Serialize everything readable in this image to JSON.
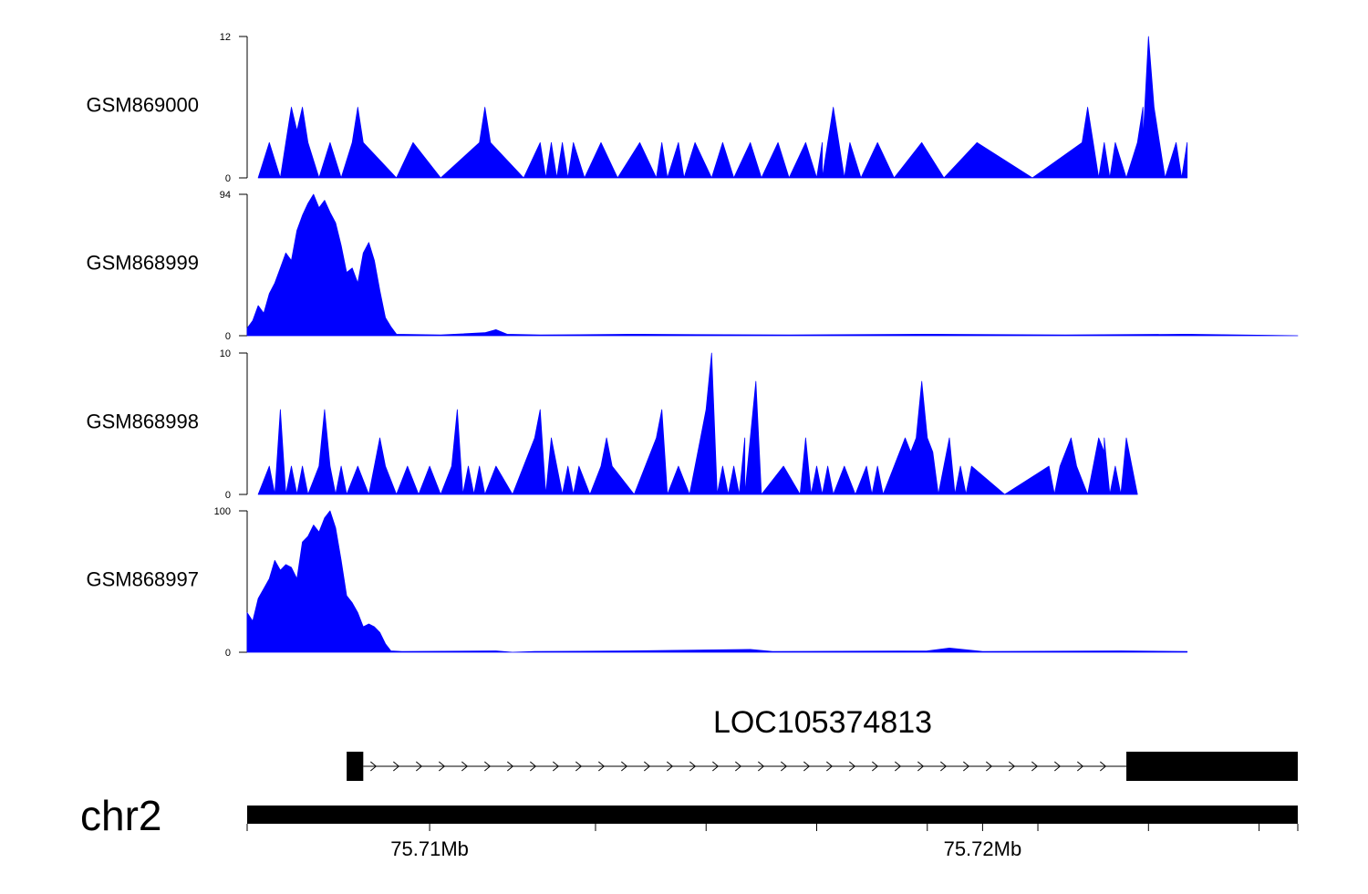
{
  "chart_data": {
    "type": "area",
    "x_range_mb": [
      75.7067,
      75.7257
    ],
    "tracks": [
      {
        "name": "GSM869000",
        "ylim": [
          0,
          12
        ],
        "y_tick_labels": [
          "0",
          "12"
        ],
        "color": "#0000ff",
        "points": [
          [
            75.7069,
            0
          ],
          [
            75.7071,
            3
          ],
          [
            75.7073,
            0
          ],
          [
            75.7074,
            3
          ],
          [
            75.7075,
            6
          ],
          [
            75.7076,
            4
          ],
          [
            75.7077,
            6
          ],
          [
            75.7078,
            3
          ],
          [
            75.708,
            0
          ],
          [
            75.7082,
            3
          ],
          [
            75.7084,
            0
          ],
          [
            75.7086,
            3
          ],
          [
            75.7087,
            6
          ],
          [
            75.7088,
            3
          ],
          [
            75.7094,
            0
          ],
          [
            75.7097,
            3
          ],
          [
            75.7102,
            0
          ],
          [
            75.7109,
            3
          ],
          [
            75.711,
            6
          ],
          [
            75.7111,
            3
          ],
          [
            75.7117,
            0
          ],
          [
            75.712,
            3
          ],
          [
            75.7121,
            0
          ],
          [
            75.7122,
            3
          ],
          [
            75.7123,
            0
          ],
          [
            75.7124,
            3
          ],
          [
            75.7125,
            0
          ],
          [
            75.7126,
            3
          ],
          [
            75.7128,
            0
          ],
          [
            75.7131,
            3
          ],
          [
            75.7134,
            0
          ],
          [
            75.7138,
            3
          ],
          [
            75.7141,
            0
          ],
          [
            75.7142,
            3
          ],
          [
            75.7143,
            0
          ],
          [
            75.7145,
            3
          ],
          [
            75.7146,
            0
          ],
          [
            75.7148,
            3
          ],
          [
            75.7151,
            0
          ],
          [
            75.7153,
            3
          ],
          [
            75.7155,
            0
          ],
          [
            75.7158,
            3
          ],
          [
            75.716,
            0
          ],
          [
            75.7163,
            3
          ],
          [
            75.7165,
            0
          ],
          [
            75.7168,
            3
          ],
          [
            75.717,
            0
          ],
          [
            75.7171,
            3
          ],
          [
            75.7171,
            0
          ],
          [
            75.7172,
            3
          ],
          [
            75.7173,
            6
          ],
          [
            75.7174,
            3
          ],
          [
            75.7175,
            0
          ],
          [
            75.7176,
            3
          ],
          [
            75.7178,
            0
          ],
          [
            75.7181,
            3
          ],
          [
            75.7184,
            0
          ],
          [
            75.7189,
            3
          ],
          [
            75.7193,
            0
          ],
          [
            75.7199,
            3
          ],
          [
            75.7209,
            0
          ],
          [
            75.7218,
            3
          ],
          [
            75.7219,
            6
          ],
          [
            75.722,
            3
          ],
          [
            75.7221,
            0
          ],
          [
            75.7222,
            3
          ],
          [
            75.7223,
            0
          ],
          [
            75.7224,
            3
          ],
          [
            75.7226,
            0
          ],
          [
            75.7228,
            3
          ],
          [
            75.7229,
            6
          ],
          [
            75.7229,
            3
          ],
          [
            75.723,
            12
          ],
          [
            75.7231,
            6
          ],
          [
            75.7232,
            3
          ],
          [
            75.7233,
            0
          ],
          [
            75.7235,
            3
          ],
          [
            75.7236,
            0
          ],
          [
            75.7237,
            3
          ],
          [
            75.7237,
            0
          ]
        ]
      },
      {
        "name": "GSM868999",
        "ylim": [
          0,
          94
        ],
        "y_tick_labels": [
          "0",
          "94"
        ],
        "color": "#0000ff",
        "points": [
          [
            75.7067,
            5
          ],
          [
            75.7068,
            10
          ],
          [
            75.7069,
            20
          ],
          [
            75.707,
            15
          ],
          [
            75.7071,
            28
          ],
          [
            75.7072,
            35
          ],
          [
            75.7073,
            45
          ],
          [
            75.7074,
            55
          ],
          [
            75.7075,
            50
          ],
          [
            75.7076,
            70
          ],
          [
            75.7077,
            80
          ],
          [
            75.7078,
            88
          ],
          [
            75.7079,
            94
          ],
          [
            75.708,
            85
          ],
          [
            75.7081,
            90
          ],
          [
            75.7082,
            82
          ],
          [
            75.7083,
            75
          ],
          [
            75.7084,
            60
          ],
          [
            75.7085,
            42
          ],
          [
            75.7086,
            45
          ],
          [
            75.7087,
            35
          ],
          [
            75.7088,
            55
          ],
          [
            75.7089,
            62
          ],
          [
            75.709,
            50
          ],
          [
            75.7091,
            30
          ],
          [
            75.7092,
            12
          ],
          [
            75.7093,
            6
          ],
          [
            75.7094,
            1
          ],
          [
            75.7102,
            0.5
          ],
          [
            75.711,
            2
          ],
          [
            75.7112,
            4
          ],
          [
            75.7114,
            1
          ],
          [
            75.712,
            0.5
          ],
          [
            75.7137,
            1
          ],
          [
            75.7165,
            0.5
          ],
          [
            75.719,
            1
          ],
          [
            75.7215,
            0.5
          ],
          [
            75.7237,
            1
          ],
          [
            75.7257,
            0
          ]
        ]
      },
      {
        "name": "GSM868998",
        "ylim": [
          0,
          10
        ],
        "y_tick_labels": [
          "0",
          "10"
        ],
        "color": "#0000ff",
        "points": [
          [
            75.7069,
            0
          ],
          [
            75.7071,
            2
          ],
          [
            75.7072,
            0
          ],
          [
            75.7073,
            6
          ],
          [
            75.7074,
            0
          ],
          [
            75.7075,
            2
          ],
          [
            75.7076,
            0
          ],
          [
            75.7077,
            2
          ],
          [
            75.7078,
            0
          ],
          [
            75.708,
            2
          ],
          [
            75.7081,
            6
          ],
          [
            75.7082,
            2
          ],
          [
            75.7083,
            0
          ],
          [
            75.7084,
            2
          ],
          [
            75.7085,
            0
          ],
          [
            75.7087,
            2
          ],
          [
            75.7089,
            0
          ],
          [
            75.709,
            2
          ],
          [
            75.7091,
            4
          ],
          [
            75.7092,
            2
          ],
          [
            75.7094,
            0
          ],
          [
            75.7096,
            2
          ],
          [
            75.7098,
            0
          ],
          [
            75.71,
            2
          ],
          [
            75.7102,
            0
          ],
          [
            75.7104,
            2
          ],
          [
            75.7105,
            6
          ],
          [
            75.7106,
            0
          ],
          [
            75.7107,
            2
          ],
          [
            75.7108,
            0
          ],
          [
            75.7109,
            2
          ],
          [
            75.711,
            0
          ],
          [
            75.7112,
            2
          ],
          [
            75.7115,
            0
          ],
          [
            75.7119,
            4
          ],
          [
            75.712,
            6
          ],
          [
            75.7121,
            0
          ],
          [
            75.7122,
            4
          ],
          [
            75.7124,
            0
          ],
          [
            75.7125,
            2
          ],
          [
            75.7126,
            0
          ],
          [
            75.7127,
            2
          ],
          [
            75.7129,
            0
          ],
          [
            75.7131,
            2
          ],
          [
            75.7132,
            4
          ],
          [
            75.7133,
            2
          ],
          [
            75.7137,
            0
          ],
          [
            75.7141,
            4
          ],
          [
            75.7142,
            6
          ],
          [
            75.7143,
            0
          ],
          [
            75.7145,
            2
          ],
          [
            75.7147,
            0
          ],
          [
            75.7149,
            4
          ],
          [
            75.715,
            6
          ],
          [
            75.7151,
            10
          ],
          [
            75.7152,
            0
          ],
          [
            75.7153,
            2
          ],
          [
            75.7154,
            0
          ],
          [
            75.7155,
            2
          ],
          [
            75.7156,
            0
          ],
          [
            75.7157,
            4
          ],
          [
            75.7157,
            0
          ],
          [
            75.7158,
            4
          ],
          [
            75.7159,
            8
          ],
          [
            75.716,
            0
          ],
          [
            75.7164,
            2
          ],
          [
            75.7167,
            0
          ],
          [
            75.7168,
            4
          ],
          [
            75.7169,
            0
          ],
          [
            75.717,
            2
          ],
          [
            75.7171,
            0
          ],
          [
            75.7172,
            2
          ],
          [
            75.7173,
            0
          ],
          [
            75.7175,
            2
          ],
          [
            75.7177,
            0
          ],
          [
            75.7179,
            2
          ],
          [
            75.718,
            0
          ],
          [
            75.7181,
            2
          ],
          [
            75.7182,
            0
          ],
          [
            75.7184,
            2
          ],
          [
            75.7186,
            4
          ],
          [
            75.7187,
            3
          ],
          [
            75.7188,
            4
          ],
          [
            75.7189,
            8
          ],
          [
            75.719,
            4
          ],
          [
            75.7191,
            3
          ],
          [
            75.7192,
            0
          ],
          [
            75.7194,
            4
          ],
          [
            75.7195,
            0
          ],
          [
            75.7196,
            2
          ],
          [
            75.7197,
            0
          ],
          [
            75.7198,
            2
          ],
          [
            75.7204,
            0
          ],
          [
            75.7212,
            2
          ],
          [
            75.7213,
            0
          ],
          [
            75.7214,
            2
          ],
          [
            75.7216,
            4
          ],
          [
            75.7217,
            2
          ],
          [
            75.7219,
            0
          ],
          [
            75.722,
            2
          ],
          [
            75.7221,
            4
          ],
          [
            75.7222,
            3
          ],
          [
            75.7222,
            4
          ],
          [
            75.7223,
            0
          ],
          [
            75.7224,
            2
          ],
          [
            75.7225,
            0
          ],
          [
            75.7226,
            4
          ],
          [
            75.7227,
            2
          ],
          [
            75.7228,
            0
          ]
        ]
      },
      {
        "name": "GSM868997",
        "ylim": [
          0,
          100
        ],
        "y_tick_labels": [
          "0",
          "100"
        ],
        "color": "#0000ff",
        "points": [
          [
            75.7067,
            28
          ],
          [
            75.7068,
            22
          ],
          [
            75.7069,
            38
          ],
          [
            75.707,
            45
          ],
          [
            75.7071,
            52
          ],
          [
            75.7072,
            65
          ],
          [
            75.7073,
            58
          ],
          [
            75.7074,
            62
          ],
          [
            75.7075,
            60
          ],
          [
            75.7076,
            52
          ],
          [
            75.7077,
            78
          ],
          [
            75.7078,
            82
          ],
          [
            75.7079,
            90
          ],
          [
            75.708,
            85
          ],
          [
            75.7081,
            95
          ],
          [
            75.7082,
            100
          ],
          [
            75.7083,
            88
          ],
          [
            75.7084,
            65
          ],
          [
            75.7085,
            40
          ],
          [
            75.7086,
            35
          ],
          [
            75.7087,
            28
          ],
          [
            75.7088,
            18
          ],
          [
            75.7089,
            20
          ],
          [
            75.709,
            18
          ],
          [
            75.7091,
            14
          ],
          [
            75.7092,
            6
          ],
          [
            75.7093,
            1
          ],
          [
            75.7095,
            0.5
          ],
          [
            75.7112,
            1
          ],
          [
            75.7115,
            0
          ],
          [
            75.7119,
            0.5
          ],
          [
            75.7136,
            1
          ],
          [
            75.7158,
            2
          ],
          [
            75.7162,
            0.5
          ],
          [
            75.719,
            1
          ],
          [
            75.7194,
            3
          ],
          [
            75.72,
            0.5
          ],
          [
            75.7225,
            1
          ],
          [
            75.7237,
            0.5
          ]
        ]
      }
    ],
    "gene": {
      "name": "LOC105374813",
      "strand": "+",
      "exons_mb": [
        [
          75.7085,
          75.7088
        ],
        [
          75.7226,
          75.7257
        ]
      ],
      "intron_mb": [
        75.7088,
        75.7226
      ]
    },
    "chromosome": {
      "name": "chr2",
      "axis_labels": [
        {
          "label": "75.71Mb",
          "mb": 75.71
        },
        {
          "label": "75.72Mb",
          "mb": 75.72
        }
      ],
      "minor_ticks_mb": [
        75.7067,
        75.713,
        75.715,
        75.717,
        75.719,
        75.721,
        75.723,
        75.725,
        75.7257
      ]
    }
  }
}
